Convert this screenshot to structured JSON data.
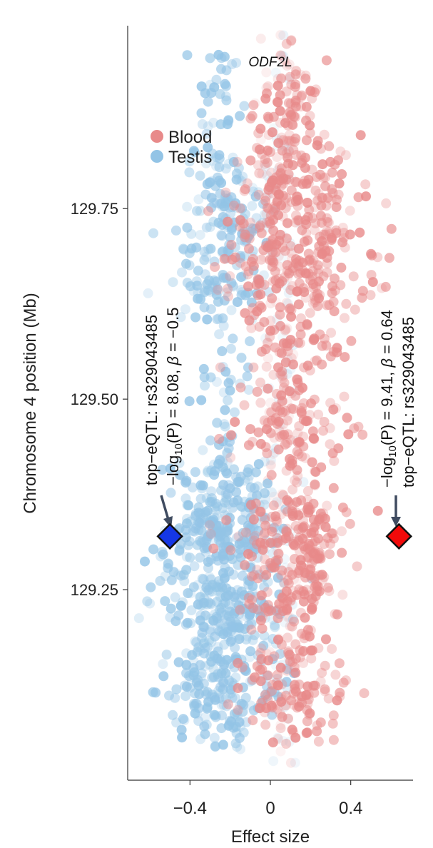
{
  "chart_data": {
    "type": "scatter",
    "gene_label": "ODF2L",
    "xlabel": "Effect size",
    "ylabel": "Chromosome 4 position (Mb)",
    "xlim": [
      -0.71,
      0.71
    ],
    "ylim": [
      129.0,
      129.99
    ],
    "x_ticks": [
      {
        "value": -0.4,
        "label": "−0.4"
      },
      {
        "value": 0,
        "label": "0"
      },
      {
        "value": 0.4,
        "label": "0.4"
      }
    ],
    "y_ticks": [
      {
        "value": 129.25,
        "label": "129.25"
      },
      {
        "value": 129.5,
        "label": "129.50"
      },
      {
        "value": 129.75,
        "label": "129.75"
      }
    ],
    "grid": false,
    "legend": {
      "position": "top-left",
      "entries": [
        {
          "name": "Blood",
          "color": "#e88a8a"
        },
        {
          "name": "Testis",
          "color": "#93c4e6"
        }
      ]
    },
    "series": [
      {
        "name": "Blood",
        "color": "#e88a8a",
        "marker": "circle",
        "note_values": "dense point cloud centered near x=0.1, spread roughly -0.65 to 0.65 across 129.05-129.95 Mb"
      },
      {
        "name": "Testis",
        "color": "#93c4e6",
        "marker": "circle",
        "note_values": "dense point cloud centered near x=-0.2, spread roughly -0.55 to 0.35 across 129.05-129.85 Mb"
      }
    ],
    "highlights": [
      {
        "name": "Testis top-eQTL",
        "x": -0.5,
        "y": 129.32,
        "color": "#1537e6",
        "marker": "diamond",
        "label_line1": "top−eQTL: rs329043485",
        "label_line2_prefix": "−log",
        "label_line2_sub": "10",
        "label_line2_mid": "(P) = 8.08, ",
        "label_line2_beta": "β",
        "label_line2_suffix": " = −0.5"
      },
      {
        "name": "Blood top-eQTL",
        "x": 0.64,
        "y": 129.32,
        "color": "#f20a0a",
        "marker": "diamond",
        "label_line1": "top−eQTL: rs329043485",
        "label_line2_prefix": "−log",
        "label_line2_sub": "10",
        "label_line2_mid": "(P) = 9.41, ",
        "label_line2_beta": "β",
        "label_line2_suffix": " = 0.64"
      }
    ]
  }
}
